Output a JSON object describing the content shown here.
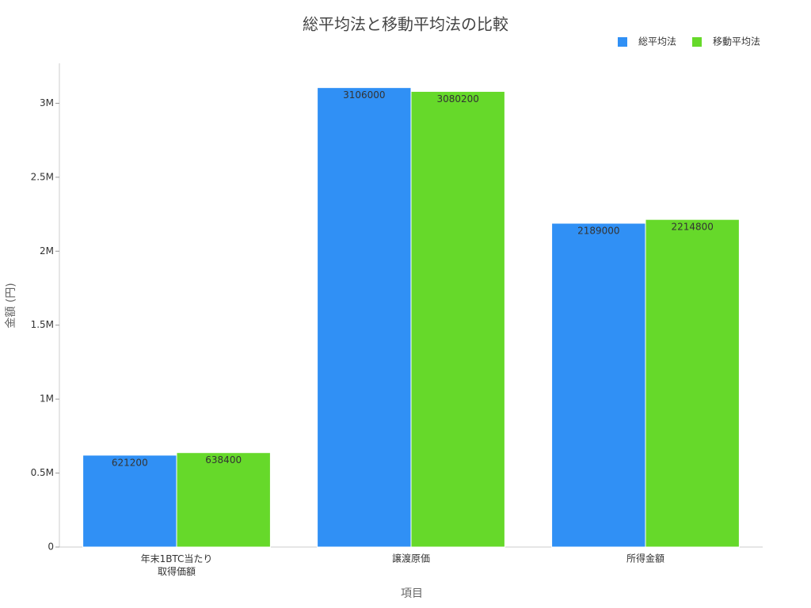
{
  "chart_data": {
    "type": "bar",
    "title": "総平均法と移動平均法の比較",
    "x_label": "項目",
    "y_label": "金額 (円)",
    "categories": [
      "年末1BTC当たり\n取得価額",
      "譲渡原価",
      "所得金額"
    ],
    "series": [
      {
        "name": "総平均法",
        "color": "#3090f5",
        "values": [
          621200,
          3106000,
          2189000
        ]
      },
      {
        "name": "移動平均法",
        "color": "#66d92a",
        "values": [
          638400,
          3080200,
          2214800
        ]
      }
    ],
    "ylim": [
      0,
      3270000
    ],
    "yticks": [
      0,
      {
        "value": 500000,
        "label": "0.5M"
      },
      {
        "value": 1000000,
        "label": "1M"
      },
      {
        "value": 1500000,
        "label": "1.5M"
      },
      {
        "value": 2000000,
        "label": "2M"
      },
      {
        "value": 2500000,
        "label": "2.5M"
      },
      {
        "value": 3000000,
        "label": "3M"
      }
    ],
    "legend": "top-right"
  }
}
